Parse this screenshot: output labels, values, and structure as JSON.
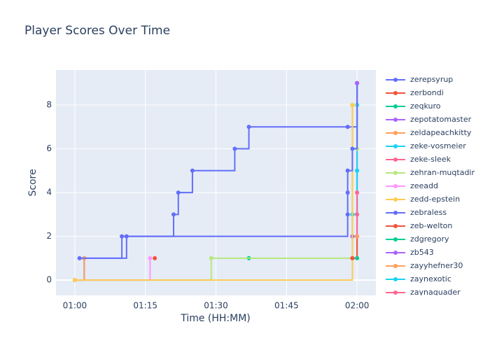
{
  "chart_data": {
    "type": "line",
    "line_shape": "hv",
    "title": "Player Scores Over Time",
    "x_label": "Time (HH:MM)",
    "y_label": "Score",
    "xlim": [
      "00:56",
      "02:04"
    ],
    "xticks": [
      "01:00",
      "01:15",
      "01:30",
      "01:45",
      "02:00"
    ],
    "ylim": [
      -0.7,
      9.6
    ],
    "yticks": [
      0,
      2,
      4,
      6,
      8
    ],
    "grid": true,
    "legend": "right",
    "series": [
      {
        "name": "zerepsyrup",
        "color": "#636efa",
        "x": [
          "01:00",
          "01:02",
          "01:10",
          "01:21",
          "01:22",
          "01:25",
          "01:34",
          "01:37",
          "01:58",
          "02:00"
        ],
        "values": [
          0,
          1,
          2,
          3,
          4,
          5,
          6,
          7,
          7,
          9
        ]
      },
      {
        "name": "zerbondi",
        "color": "#EF553B",
        "x": [
          "01:17"
        ],
        "values": [
          1
        ]
      },
      {
        "name": "zeqkuro",
        "color": "#00cc96",
        "x": [
          "01:37"
        ],
        "values": [
          1
        ]
      },
      {
        "name": "zepotatomaster",
        "color": "#ab63fa",
        "x": [
          "01:59",
          "02:00"
        ],
        "values": [
          2,
          9
        ]
      },
      {
        "name": "zeldapeachkitty",
        "color": "#FFA15A",
        "x": [
          "01:00",
          "01:02"
        ],
        "values": [
          0,
          1
        ]
      },
      {
        "name": "zeke-vosmeier",
        "color": "#19d3f3",
        "x": [
          "01:59",
          "02:00",
          "02:00"
        ],
        "values": [
          3,
          5,
          8
        ]
      },
      {
        "name": "zeke-sleek",
        "color": "#FF6692",
        "x": [
          "01:59",
          "02:00"
        ],
        "values": [
          1,
          4
        ]
      },
      {
        "name": "zehran-muqtadir",
        "color": "#B6E880",
        "x": [
          "01:00",
          "01:29",
          "01:59",
          "02:00"
        ],
        "values": [
          0,
          1,
          8,
          6
        ]
      },
      {
        "name": "zeeadd",
        "color": "#FF97FF",
        "x": [
          "01:00",
          "01:16"
        ],
        "values": [
          0,
          1
        ]
      },
      {
        "name": "zedd-epstein",
        "color": "#FECB52",
        "x": [
          "01:00",
          "01:59"
        ],
        "values": [
          0,
          8
        ]
      },
      {
        "name": "zebraless",
        "color": "#636efa",
        "x": [
          "01:01",
          "01:11",
          "01:58",
          "01:58",
          "01:58",
          "01:59",
          "02:00"
        ],
        "values": [
          1,
          2,
          3,
          4,
          5,
          6,
          9
        ]
      },
      {
        "name": "zeb-welton",
        "color": "#EF553B",
        "x": [
          "01:59",
          "02:00"
        ],
        "values": [
          1,
          2
        ]
      },
      {
        "name": "zdgregory",
        "color": "#00cc96",
        "x": [
          "02:00"
        ],
        "values": [
          1
        ]
      },
      {
        "name": "zb543",
        "color": "#ab63fa",
        "x": [
          "02:00"
        ],
        "values": [
          9
        ]
      },
      {
        "name": "zayyhefner30",
        "color": "#FFA15A",
        "x": [
          "02:00"
        ],
        "values": [
          2
        ]
      },
      {
        "name": "zaynexotic",
        "color": "#19d3f3",
        "x": [
          "02:00"
        ],
        "values": [
          5
        ]
      },
      {
        "name": "zaynaquader",
        "color": "#FF6692",
        "x": [
          "02:00"
        ],
        "values": [
          3
        ]
      }
    ]
  }
}
